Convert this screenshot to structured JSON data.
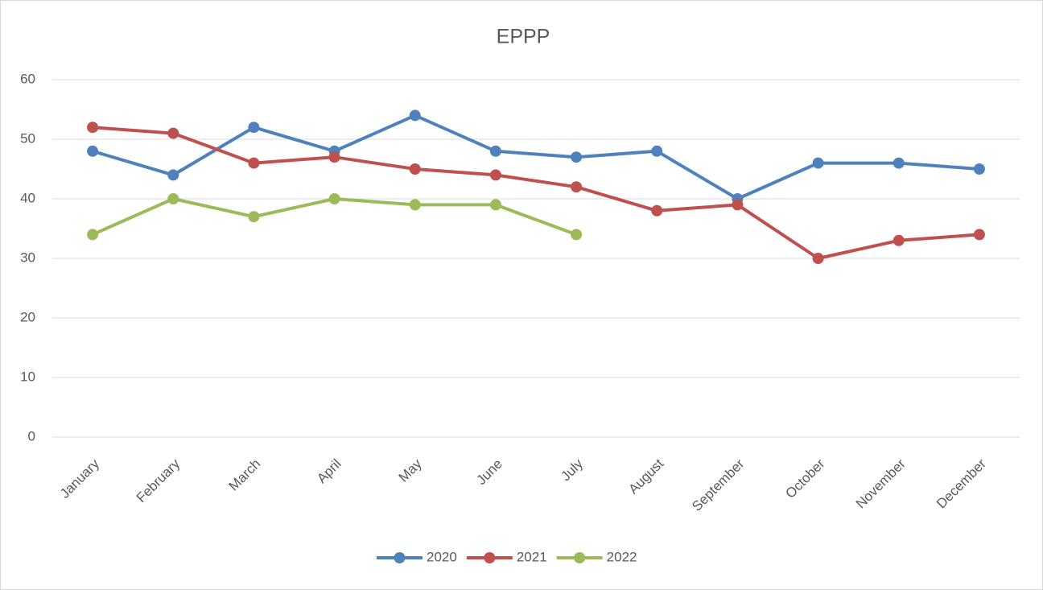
{
  "chart_data": {
    "type": "line",
    "title": "EPPP",
    "categories": [
      "January",
      "February",
      "March",
      "April",
      "May",
      "June",
      "July",
      "August",
      "September",
      "October",
      "November",
      "December"
    ],
    "series": [
      {
        "name": "2020",
        "color": "#4f81bd",
        "values": [
          48,
          44,
          52,
          48,
          54,
          48,
          47,
          48,
          40,
          46,
          46,
          45
        ]
      },
      {
        "name": "2021",
        "color": "#c0504d",
        "values": [
          52,
          51,
          46,
          47,
          45,
          44,
          42,
          38,
          39,
          30,
          33,
          34
        ]
      },
      {
        "name": "2022",
        "color": "#9bbb59",
        "values": [
          34,
          40,
          37,
          40,
          39,
          39,
          34,
          null,
          null,
          null,
          null,
          null
        ]
      }
    ],
    "ylim": [
      0,
      60
    ],
    "yticks": [
      0,
      10,
      20,
      30,
      40,
      50,
      60
    ],
    "grid": true,
    "legend": "bottom"
  }
}
